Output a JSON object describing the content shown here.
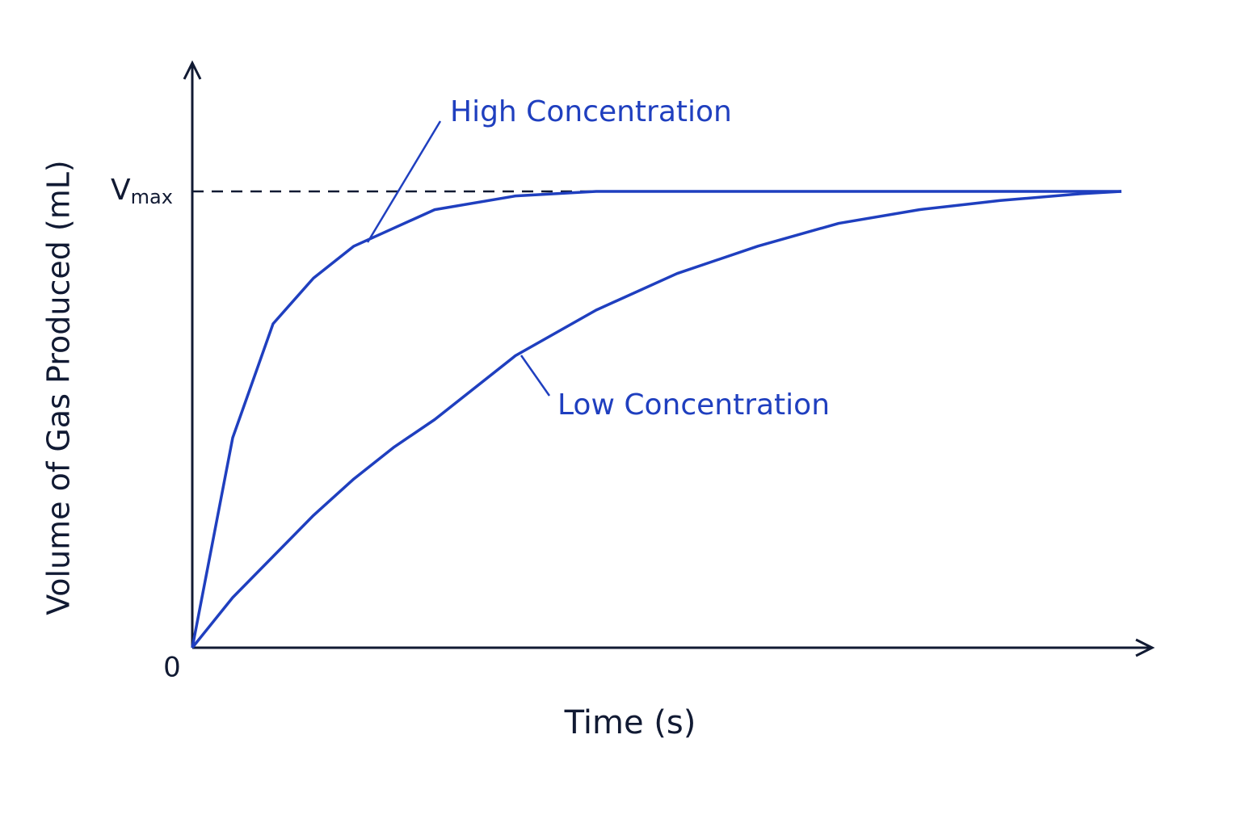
{
  "chart_data": {
    "type": "line",
    "x_label": "Time (s)",
    "y_label": "Volume of Gas Produced (mL)",
    "x": [
      0,
      0.5,
      1,
      1.5,
      2,
      2.5,
      3,
      4,
      5,
      6,
      7,
      8,
      9,
      10,
      11,
      11.5
    ],
    "series": [
      {
        "name": "High Concentration",
        "color": "#1f3fbf",
        "values": [
          0,
          0.46,
          0.71,
          0.81,
          0.88,
          0.92,
          0.96,
          0.99,
          1,
          1,
          1,
          1,
          1,
          1,
          1,
          1
        ]
      },
      {
        "name": "Low Concentration",
        "color": "#1f3fbf",
        "values": [
          0,
          0.11,
          0.2,
          0.29,
          0.37,
          0.44,
          0.5,
          0.64,
          0.74,
          0.82,
          0.88,
          0.93,
          0.96,
          0.98,
          0.995,
          1
        ]
      }
    ],
    "xlim": [
      0,
      12
    ],
    "ylim": [
      0,
      1.3
    ],
    "yticks": [
      0,
      {
        "value": 1,
        "label": "Vmax"
      }
    ],
    "grid": "dashed"
  }
}
